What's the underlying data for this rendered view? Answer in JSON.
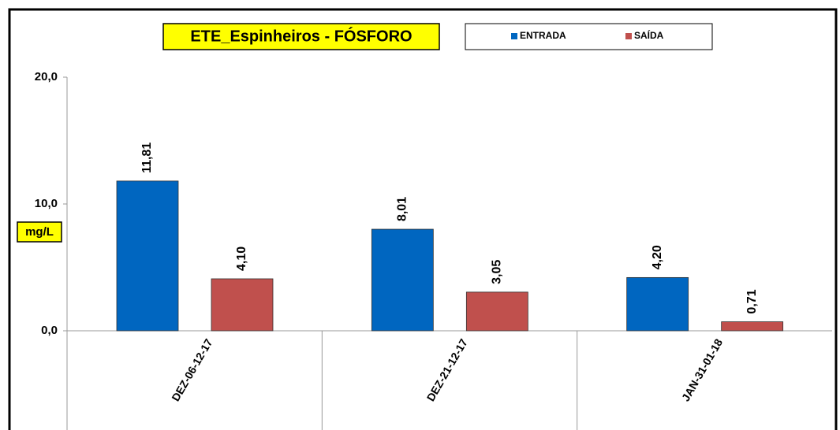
{
  "chart_data": {
    "type": "bar",
    "title": "ETE_Espinheiros - FÓSFORO",
    "y_label": "mg/L",
    "categories": [
      "DEZ-06-12-17",
      "DEZ-21-12-17",
      "JAN-31-01-18"
    ],
    "series": [
      {
        "name": "ENTRADA",
        "color": "#0066c0",
        "values": [
          11.81,
          8.01,
          4.2
        ],
        "value_labels": [
          "11,81",
          "8,01",
          "4,20"
        ]
      },
      {
        "name": "SAÍDA",
        "color": "#c0504d",
        "values": [
          4.1,
          3.05,
          0.71
        ],
        "value_labels": [
          "4,10",
          "3,05",
          "0,71"
        ]
      }
    ],
    "ylim": [
      0,
      20
    ],
    "yticks": [
      {
        "value": 0,
        "label": "0,0"
      },
      {
        "value": 10,
        "label": "10,0"
      },
      {
        "value": 20,
        "label": "20,0"
      }
    ],
    "grid": false
  }
}
